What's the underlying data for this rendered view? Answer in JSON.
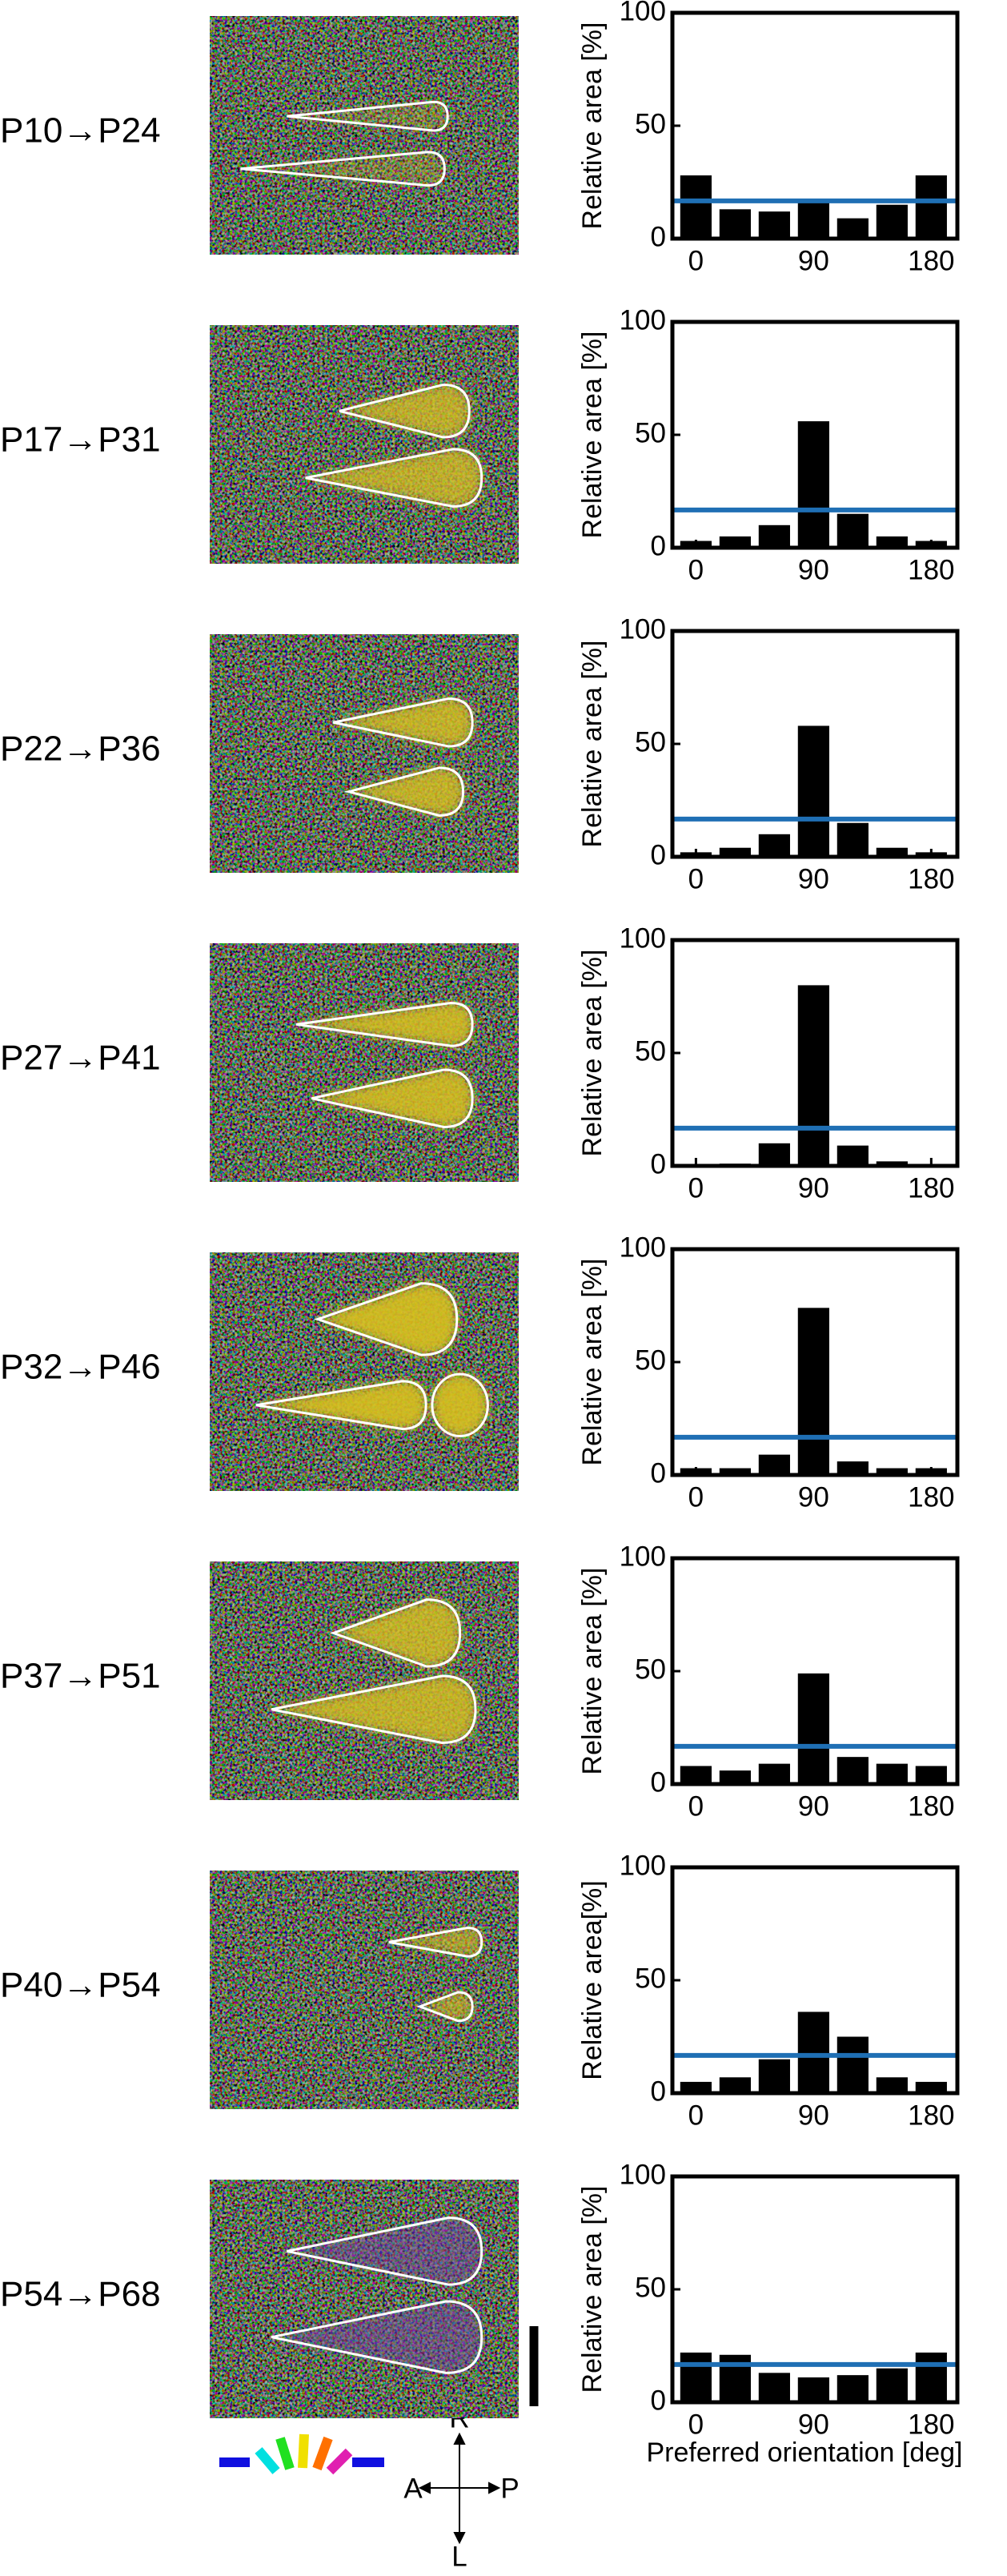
{
  "chart_data": [
    {
      "type": "bar",
      "title": "P10→P24",
      "ylabel": "Relative area [%]",
      "x": [
        0,
        30,
        60,
        90,
        120,
        150,
        180
      ],
      "values": [
        28,
        13,
        12,
        16,
        9,
        15,
        28
      ],
      "color": "#000000",
      "reference_line": 16.7,
      "reference_color": "#1f6fb4",
      "xlim": [
        -18,
        200
      ],
      "ylim": [
        0,
        100
      ],
      "xticks": [
        0,
        90,
        180
      ],
      "yticks": [
        0,
        50,
        100
      ]
    },
    {
      "type": "bar",
      "title": "P17→P31",
      "ylabel": "Relative area [%]",
      "x": [
        0,
        30,
        60,
        90,
        120,
        150,
        180
      ],
      "values": [
        3,
        5,
        10,
        56,
        15,
        5,
        3
      ],
      "color": "#000000",
      "reference_line": 16.7,
      "reference_color": "#1f6fb4",
      "xlim": [
        -18,
        200
      ],
      "ylim": [
        0,
        100
      ],
      "xticks": [
        0,
        90,
        180
      ],
      "yticks": [
        0,
        50,
        100
      ]
    },
    {
      "type": "bar",
      "title": "P22→P36",
      "ylabel": "Relative area [%]",
      "x": [
        0,
        30,
        60,
        90,
        120,
        150,
        180
      ],
      "values": [
        2,
        4,
        10,
        58,
        15,
        4,
        2
      ],
      "color": "#000000",
      "reference_line": 16.7,
      "reference_color": "#1f6fb4",
      "xlim": [
        -18,
        200
      ],
      "ylim": [
        0,
        100
      ],
      "xticks": [
        0,
        90,
        180
      ],
      "yticks": [
        0,
        50,
        100
      ]
    },
    {
      "type": "bar",
      "title": "P27→P41",
      "ylabel": "Relative area [%]",
      "x": [
        0,
        30,
        60,
        90,
        120,
        150,
        180
      ],
      "values": [
        0,
        1,
        10,
        80,
        9,
        2,
        0
      ],
      "color": "#000000",
      "reference_line": 16.7,
      "reference_color": "#1f6fb4",
      "xlim": [
        -18,
        200
      ],
      "ylim": [
        0,
        100
      ],
      "xticks": [
        0,
        90,
        180
      ],
      "yticks": [
        0,
        50,
        100
      ]
    },
    {
      "type": "bar",
      "title": "P32→P46",
      "ylabel": "Relative area [%]",
      "x": [
        0,
        30,
        60,
        90,
        120,
        150,
        180
      ],
      "values": [
        3,
        3,
        9,
        74,
        6,
        3,
        3
      ],
      "color": "#000000",
      "reference_line": 16.7,
      "reference_color": "#1f6fb4",
      "xlim": [
        -18,
        200
      ],
      "ylim": [
        0,
        100
      ],
      "xticks": [
        0,
        90,
        180
      ],
      "yticks": [
        0,
        50,
        100
      ]
    },
    {
      "type": "bar",
      "title": "P37→P51",
      "ylabel": "Relative area [%]",
      "x": [
        0,
        30,
        60,
        90,
        120,
        150,
        180
      ],
      "values": [
        8,
        6,
        9,
        49,
        12,
        9,
        8
      ],
      "color": "#000000",
      "reference_line": 16.7,
      "reference_color": "#1f6fb4",
      "xlim": [
        -18,
        200
      ],
      "ylim": [
        0,
        100
      ],
      "xticks": [
        0,
        90,
        180
      ],
      "yticks": [
        0,
        50,
        100
      ]
    },
    {
      "type": "bar",
      "title": "P40→P54",
      "ylabel": "Relative area[%]",
      "x": [
        0,
        30,
        60,
        90,
        120,
        150,
        180
      ],
      "values": [
        5,
        7,
        15,
        36,
        25,
        7,
        5
      ],
      "color": "#000000",
      "reference_line": 16.7,
      "reference_color": "#1f6fb4",
      "xlim": [
        -18,
        200
      ],
      "ylim": [
        0,
        100
      ],
      "xticks": [
        0,
        90,
        180
      ],
      "yticks": [
        0,
        50,
        100
      ]
    },
    {
      "type": "bar",
      "title": "P54→P68",
      "ylabel": "Relative area [%]",
      "xlabel": "Preferred orientation [deg]",
      "x": [
        0,
        30,
        60,
        90,
        120,
        150,
        180
      ],
      "values": [
        22,
        21,
        13,
        11,
        12,
        15,
        22
      ],
      "color": "#000000",
      "reference_line": 16.7,
      "reference_color": "#1f6fb4",
      "xlim": [
        -18,
        200
      ],
      "ylim": [
        0,
        100
      ],
      "xticks": [
        0,
        90,
        180
      ],
      "yticks": [
        0,
        50,
        100
      ]
    }
  ],
  "compass": {
    "top": "R",
    "bottom": "L",
    "left": "A",
    "right": "P"
  }
}
